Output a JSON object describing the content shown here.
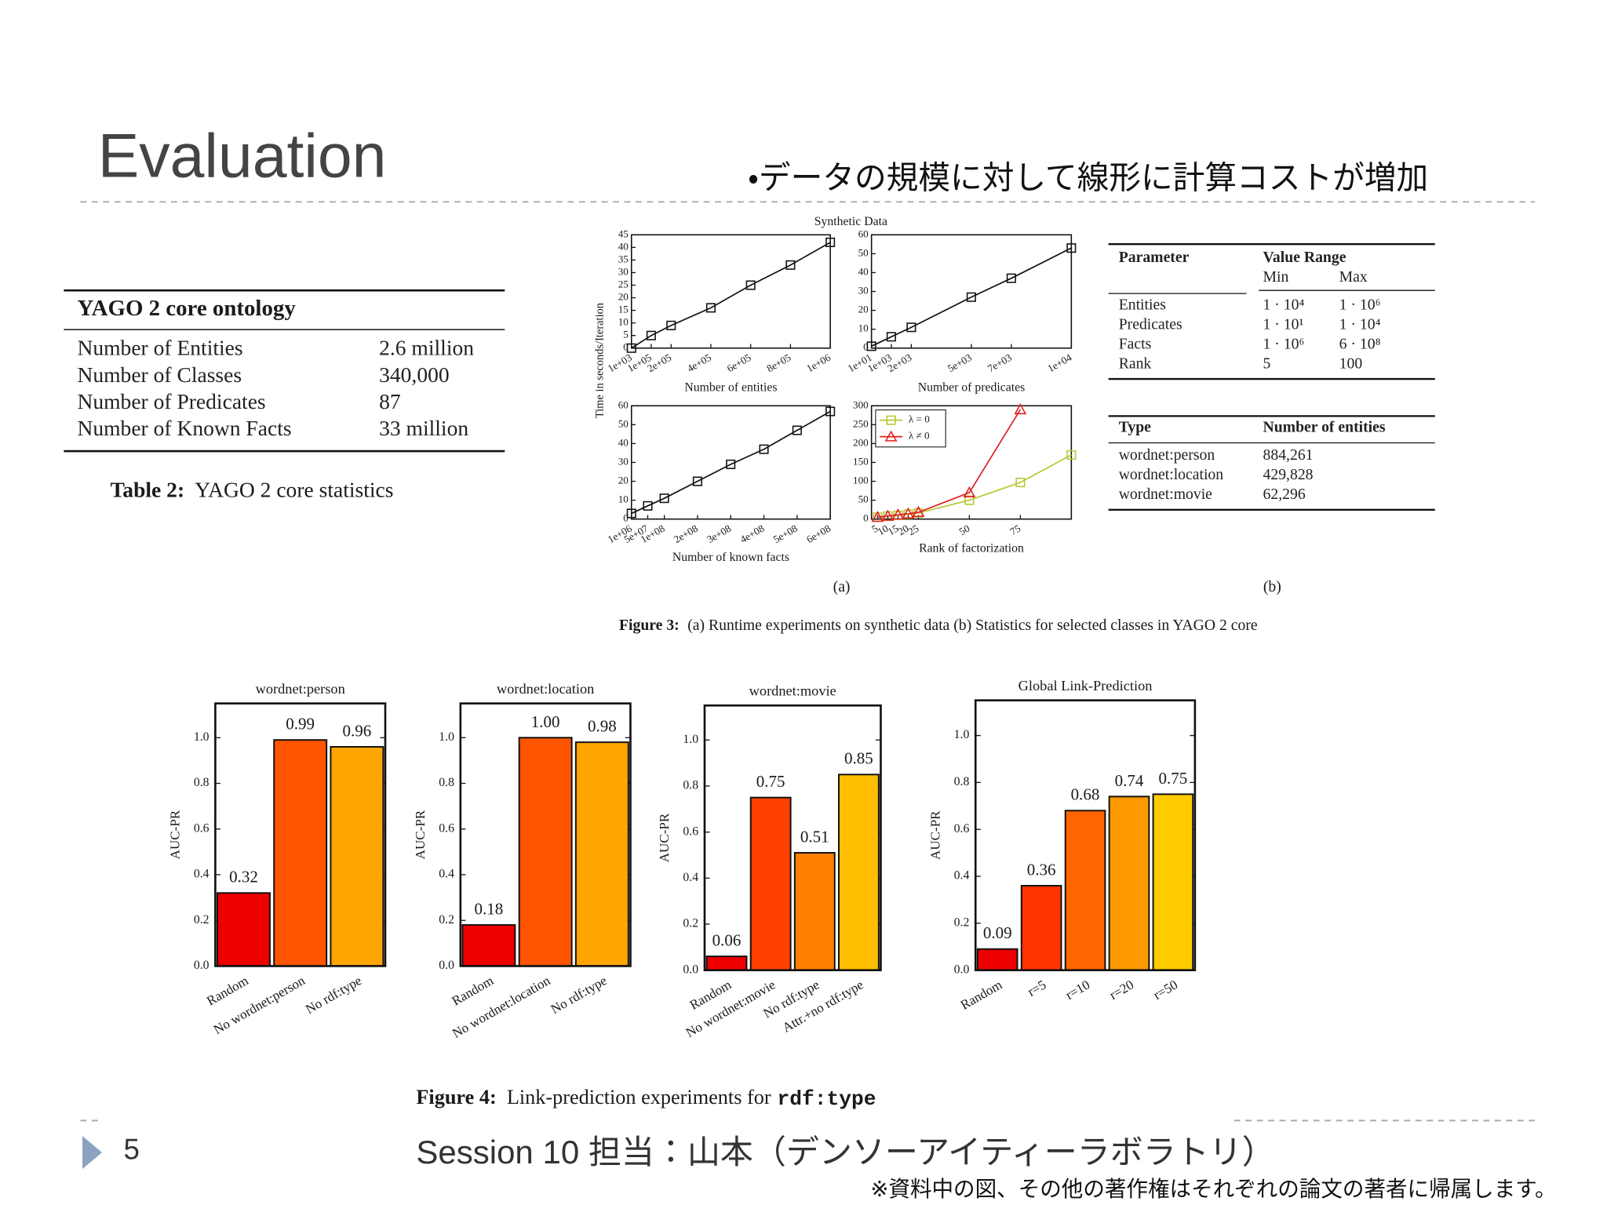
{
  "slide": {
    "title": "Evaluation",
    "bullet": "・データの規模に対して線形に計算コストが増加",
    "page_number": "5",
    "footer": "Session 10 担当：山本（デンソーアイティーラボラトリ）",
    "copyright": "※資料中の図、その他の著作権はそれぞれの論文の著者に帰属します。"
  },
  "table2": {
    "header": "YAGO 2 core ontology",
    "rows": [
      [
        "Number of Entities",
        "2.6 million"
      ],
      [
        "Number of Classes",
        "340,000"
      ],
      [
        "Number of Predicates",
        "87"
      ],
      [
        "Number of Known Facts",
        "33 million"
      ]
    ],
    "caption_label": "Table 2:",
    "caption": "YAGO 2 core statistics"
  },
  "figure3": {
    "title": "Synthetic Data",
    "ylabel": "Time in seconds/Iteration",
    "sub_a": "(a)",
    "sub_b": "(b)",
    "caption_label": "Figure 3:",
    "caption": "(a) Runtime experiments on synthetic data (b) Statistics for selected classes in YAGO 2 core",
    "param_table": {
      "headers": [
        "Parameter",
        "Value Range"
      ],
      "subheaders": [
        "Min",
        "Max"
      ],
      "rows": [
        [
          "Entities",
          "1 · 10⁴",
          "1 · 10⁶"
        ],
        [
          "Predicates",
          "1 · 10¹",
          "1 · 10⁴"
        ],
        [
          "Facts",
          "1 · 10⁶",
          "6 · 10⁸"
        ],
        [
          "Rank",
          "5",
          "100"
        ]
      ]
    },
    "type_table": {
      "headers": [
        "Type",
        "Number of entities"
      ],
      "rows": [
        [
          "wordnet:person",
          "884,261"
        ],
        [
          "wordnet:location",
          "429,828"
        ],
        [
          "wordnet:movie",
          "62,296"
        ]
      ]
    }
  },
  "figure4": {
    "caption_label": "Figure 4:",
    "caption": "Link-prediction experiments for",
    "caption_code": "rdf:type"
  },
  "chart_data": [
    {
      "type": "line",
      "xlabel": "Number of entities",
      "x": [
        1000,
        100000,
        200000,
        400000,
        600000,
        800000,
        1000000
      ],
      "values": [
        0,
        5,
        9,
        16,
        25,
        33,
        42
      ],
      "color": "#111111",
      "marker": "square",
      "xlim": [
        1000,
        1000000
      ],
      "xticks": [
        {
          "value": 1000,
          "label": "1e+03"
        },
        {
          "value": 100000,
          "label": "1e+05"
        },
        {
          "value": 200000,
          "label": "2e+05"
        },
        {
          "value": 400000,
          "label": "4e+05"
        },
        {
          "value": 600000,
          "label": "6e+05"
        },
        {
          "value": 800000,
          "label": "8e+05"
        },
        {
          "value": 1000000,
          "label": "1e+06"
        }
      ],
      "ylim": [
        0,
        45
      ],
      "yticks": [
        0,
        5,
        10,
        15,
        20,
        25,
        30,
        35,
        40,
        45
      ]
    },
    {
      "type": "line",
      "xlabel": "Number of predicates",
      "x": [
        10,
        1000,
        2000,
        5000,
        7000,
        10000
      ],
      "values": [
        1,
        6,
        11,
        27,
        37,
        53
      ],
      "color": "#111111",
      "marker": "square",
      "xlim": [
        10,
        10000
      ],
      "xticks": [
        {
          "value": 10,
          "label": "1e+01"
        },
        {
          "value": 1000,
          "label": "1e+03"
        },
        {
          "value": 2000,
          "label": "2e+03"
        },
        {
          "value": 5000,
          "label": "5e+03"
        },
        {
          "value": 7000,
          "label": "7e+03"
        },
        {
          "value": 10000,
          "label": "1e+04"
        }
      ],
      "ylim": [
        0,
        60
      ],
      "yticks": [
        0,
        10,
        20,
        30,
        40,
        50,
        60
      ]
    },
    {
      "type": "line",
      "xlabel": "Number of known facts",
      "x": [
        1000000,
        50000000,
        100000000,
        200000000,
        300000000,
        400000000,
        500000000,
        600000000
      ],
      "values": [
        3,
        7,
        11,
        20,
        29,
        37,
        47,
        57
      ],
      "color": "#111111",
      "marker": "square",
      "xlim": [
        1000000,
        600000000
      ],
      "xticks": [
        {
          "value": 1000000,
          "label": "1e+06"
        },
        {
          "value": 50000000,
          "label": "5e+07"
        },
        {
          "value": 100000000,
          "label": "1e+08"
        },
        {
          "value": 200000000,
          "label": "2e+08"
        },
        {
          "value": 300000000,
          "label": "3e+08"
        },
        {
          "value": 400000000,
          "label": "4e+08"
        },
        {
          "value": 500000000,
          "label": "5e+08"
        },
        {
          "value": 600000000,
          "label": "6e+08"
        }
      ],
      "ylim": [
        0,
        60
      ],
      "yticks": [
        0,
        10,
        20,
        30,
        40,
        50,
        60
      ]
    },
    {
      "type": "line",
      "xlabel": "Rank of factorization",
      "x": [
        5,
        10,
        15,
        20,
        25,
        50,
        75,
        100
      ],
      "series": [
        {
          "name": "λ = 0",
          "color": "#b8c832",
          "marker": "square",
          "values": [
            5,
            8,
            10,
            13,
            16,
            50,
            97,
            170
          ]
        },
        {
          "name": "λ ≠ 0",
          "color": "#e02020",
          "marker": "triangle",
          "values": [
            5,
            8,
            11,
            14,
            18,
            70,
            290,
            null
          ]
        }
      ],
      "legend": "upper left",
      "xlim": [
        2,
        100
      ],
      "xticks": [
        5,
        10,
        15,
        20,
        25,
        50,
        75
      ],
      "ylim": [
        0,
        300
      ],
      "yticks": [
        0,
        50,
        100,
        150,
        200,
        250,
        300
      ]
    },
    {
      "type": "bar",
      "title": "wordnet:person",
      "ylabel": "AUC-PR",
      "categories": [
        "Random",
        "No wordnet:person",
        "No rdf:type"
      ],
      "values": [
        0.32,
        0.99,
        0.96
      ],
      "value_labels": [
        "0.32",
        "0.99",
        "0.96"
      ],
      "colors": [
        "#ee0000",
        "#ff5500",
        "#ffa500"
      ],
      "ylim": [
        0,
        1.15
      ],
      "yticks": [
        {
          "value": 0,
          "label": "0.0"
        },
        0.2,
        0.4,
        0.6,
        0.8,
        {
          "value": 1,
          "label": "1.0"
        }
      ]
    },
    {
      "type": "bar",
      "title": "wordnet:location",
      "ylabel": "AUC-PR",
      "categories": [
        "Random",
        "No wordnet:location",
        "No rdf:type"
      ],
      "values": [
        0.18,
        1.0,
        0.98
      ],
      "value_labels": [
        "0.18",
        "1.00",
        "0.98"
      ],
      "colors": [
        "#ee0000",
        "#ff5500",
        "#ffa500"
      ],
      "ylim": [
        0,
        1.15
      ],
      "yticks": [
        {
          "value": 0,
          "label": "0.0"
        },
        0.2,
        0.4,
        0.6,
        0.8,
        {
          "value": 1,
          "label": "1.0"
        }
      ]
    },
    {
      "type": "bar",
      "title": "wordnet:movie",
      "ylabel": "AUC-PR",
      "categories": [
        "Random",
        "No wordnet:movie",
        "No rdf:type",
        "Attr.+no rdf:type"
      ],
      "values": [
        0.06,
        0.75,
        0.51,
        0.85
      ],
      "value_labels": [
        "0.06",
        "0.75",
        "0.51",
        "0.85"
      ],
      "colors": [
        "#ee0000",
        "#ff4000",
        "#ff8000",
        "#ffbf00"
      ],
      "ylim": [
        0,
        1.15
      ],
      "yticks": [
        {
          "value": 0,
          "label": "0.0"
        },
        0.2,
        0.4,
        0.6,
        0.8,
        {
          "value": 1,
          "label": "1.0"
        }
      ]
    },
    {
      "type": "bar",
      "title": "Global Link-Prediction",
      "ylabel": "AUC-PR",
      "categories": [
        "Random",
        "r=5",
        "r=10",
        "r=20",
        "r=50"
      ],
      "values": [
        0.09,
        0.36,
        0.68,
        0.74,
        0.75
      ],
      "value_labels": [
        "0.09",
        "0.36",
        "0.68",
        "0.74",
        "0.75"
      ],
      "colors": [
        "#ee0000",
        "#ff3300",
        "#ff6600",
        "#ff9900",
        "#ffcc00"
      ],
      "ylim": [
        0,
        1.15
      ],
      "yticks": [
        {
          "value": 0,
          "label": "0.0"
        },
        0.2,
        0.4,
        0.6,
        0.8,
        {
          "value": 1,
          "label": "1.0"
        }
      ]
    }
  ]
}
